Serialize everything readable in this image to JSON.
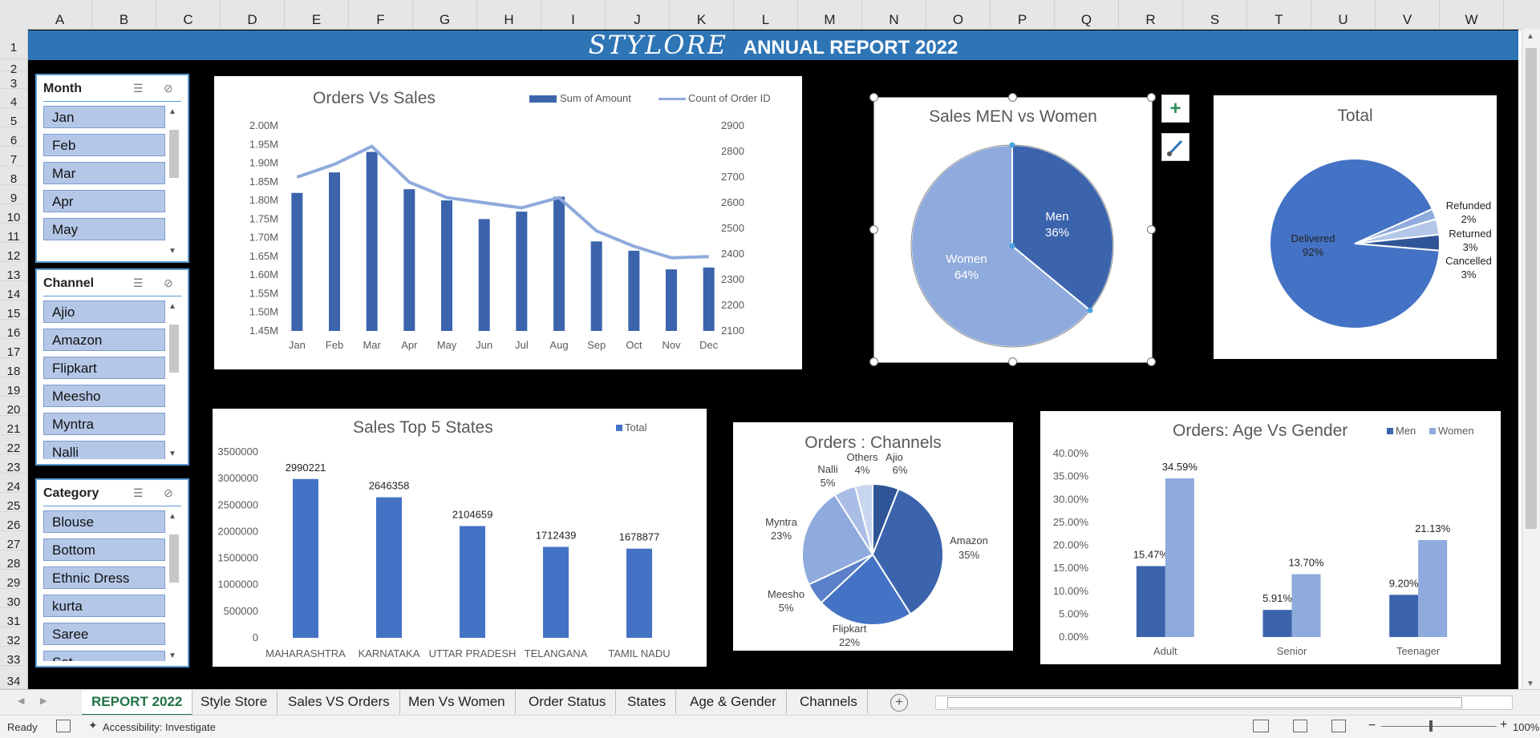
{
  "columns": [
    "A",
    "B",
    "C",
    "D",
    "E",
    "F",
    "G",
    "H",
    "I",
    "J",
    "K",
    "L",
    "M",
    "N",
    "O",
    "P",
    "Q",
    "R",
    "S",
    "T",
    "U",
    "V",
    "W"
  ],
  "rows": [
    "1",
    "2",
    "3",
    "4",
    "5",
    "6",
    "7",
    "8",
    "9",
    "10",
    "11",
    "12",
    "13",
    "14",
    "15",
    "16",
    "17",
    "18",
    "19",
    "20",
    "21",
    "22",
    "23",
    "24",
    "25",
    "26",
    "27",
    "28",
    "29",
    "30",
    "31",
    "32",
    "33",
    "34"
  ],
  "banner": {
    "brand": "STYLORE",
    "title": "ANNUAL REPORT 2022"
  },
  "slicers": [
    {
      "title": "Month",
      "items": [
        "Jan",
        "Feb",
        "Mar",
        "Apr",
        "May"
      ]
    },
    {
      "title": "Channel",
      "items": [
        "Ajio",
        "Amazon",
        "Flipkart",
        "Meesho",
        "Myntra",
        "Nalli"
      ]
    },
    {
      "title": "Category",
      "items": [
        "Blouse",
        "Bottom",
        "Ethnic Dress",
        "kurta",
        "Saree",
        "Set"
      ]
    }
  ],
  "icons": {
    "multiselect": "multi-select-icon",
    "clearfilter": "clear-filter-icon",
    "chart_elements": "plus-icon",
    "chart_styles": "brush-icon"
  },
  "colors": {
    "banner": "#2e75b6",
    "dark_blue": "#3b64ad",
    "mid_blue": "#4472c4",
    "light_blue": "#8faadc",
    "sheet_bg": "#000000"
  },
  "charts": {
    "orders_vs_sales": {
      "title": "Orders Vs Sales",
      "legend_bar": "Sum of Amount",
      "legend_line": "Count of Order ID",
      "left_ticks": [
        "2.00M",
        "1.95M",
        "1.90M",
        "1.85M",
        "1.80M",
        "1.75M",
        "1.70M",
        "1.65M",
        "1.60M",
        "1.55M",
        "1.50M",
        "1.45M"
      ],
      "right_ticks": [
        "2900",
        "2800",
        "2700",
        "2600",
        "2500",
        "2400",
        "2300",
        "2200",
        "2100"
      ]
    },
    "men_women": {
      "title": "Sales MEN vs Women",
      "men_label": "Men",
      "men_pct": "36%",
      "women_label": "Women",
      "women_pct": "64%"
    },
    "total": {
      "title": "Total",
      "labels": [
        {
          "name": "Delivered",
          "pct": "92%"
        },
        {
          "name": "Refunded",
          "pct": "2%"
        },
        {
          "name": "Returned",
          "pct": "3%"
        },
        {
          "name": "Cancelled",
          "pct": "3%"
        }
      ]
    },
    "top_states": {
      "title": "Sales Top 5 States",
      "legend": "Total",
      "yticks": [
        "3500000",
        "3000000",
        "2500000",
        "2000000",
        "1500000",
        "1000000",
        "500000",
        "0"
      ]
    },
    "channels": {
      "title": "Orders : Channels"
    },
    "age_gender": {
      "title": "Orders: Age Vs Gender",
      "legend_men": "Men",
      "legend_women": "Women",
      "yticks": [
        "40.00%",
        "35.00%",
        "30.00%",
        "25.00%",
        "20.00%",
        "15.00%",
        "10.00%",
        "5.00%",
        "0.00%"
      ]
    }
  },
  "chart_data": [
    {
      "type": "bar",
      "title": "Orders Vs Sales",
      "categories": [
        "Jan",
        "Feb",
        "Mar",
        "Apr",
        "May",
        "Jun",
        "Jul",
        "Aug",
        "Sep",
        "Oct",
        "Nov",
        "Dec"
      ],
      "series": [
        {
          "name": "Sum of Amount",
          "values": [
            1820000,
            1875000,
            1930000,
            1830000,
            1800000,
            1750000,
            1770000,
            1810000,
            1690000,
            1665000,
            1615000,
            1620000
          ]
        },
        {
          "name": "Count of Order ID",
          "values": [
            2700,
            2750,
            2820,
            2680,
            2620,
            2600,
            2580,
            2620,
            2490,
            2430,
            2385,
            2390
          ]
        }
      ],
      "ylim": [
        1450000,
        2000000
      ],
      "y2lim": [
        2100,
        2900
      ]
    },
    {
      "type": "pie",
      "title": "Sales MEN vs Women",
      "categories": [
        "Men",
        "Women"
      ],
      "values": [
        36,
        64
      ]
    },
    {
      "type": "pie",
      "title": "Total",
      "categories": [
        "Delivered",
        "Refunded",
        "Returned",
        "Cancelled"
      ],
      "values": [
        92,
        2,
        3,
        3
      ]
    },
    {
      "type": "bar",
      "title": "Sales Top 5 States",
      "categories": [
        "MAHARASHTRA",
        "KARNATAKA",
        "UTTAR PRADESH",
        "TELANGANA",
        "TAMIL NADU"
      ],
      "series": [
        {
          "name": "Total",
          "values": [
            2990221,
            2646358,
            2104659,
            1712439,
            1678877
          ]
        }
      ],
      "ylim": [
        0,
        3500000
      ]
    },
    {
      "type": "pie",
      "title": "Orders : Channels",
      "categories": [
        "Ajio",
        "Amazon",
        "Flipkart",
        "Meesho",
        "Myntra",
        "Nalli",
        "Others"
      ],
      "values": [
        6,
        35,
        22,
        5,
        23,
        5,
        4
      ]
    },
    {
      "type": "bar",
      "title": "Orders: Age Vs Gender",
      "categories": [
        "Adult",
        "Senior",
        "Teenager"
      ],
      "series": [
        {
          "name": "Men",
          "values": [
            15.47,
            5.91,
            9.2
          ]
        },
        {
          "name": "Women",
          "values": [
            34.59,
            13.7,
            21.13
          ]
        }
      ],
      "ylim": [
        0,
        40
      ]
    }
  ],
  "sheet_tabs": [
    "REPORT 2022",
    "Style Store",
    "Sales VS Orders",
    "Men Vs Women",
    "Order Status",
    "States",
    "Age & Gender",
    "Channels"
  ],
  "active_tab": "REPORT 2022",
  "status": {
    "ready": "Ready",
    "accessibility": "Accessibility: Investigate",
    "zoom": "100%"
  }
}
